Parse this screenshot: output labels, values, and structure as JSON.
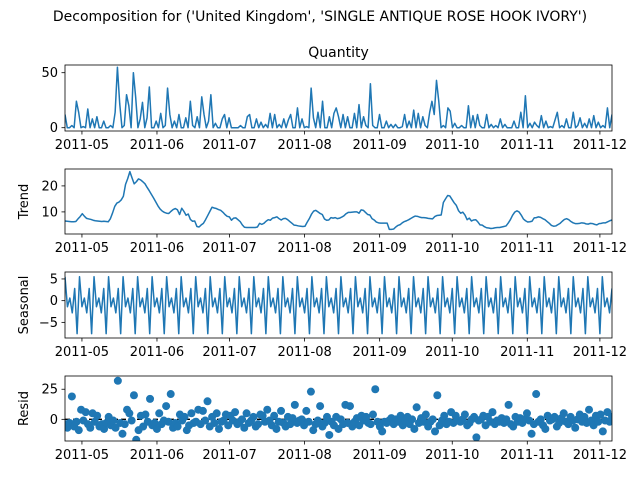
{
  "figure_title": "Decomposition for ('United Kingdom', 'SINGLE ANTIQUE ROSE HOOK IVORY')",
  "colors": {
    "series": "#1f77b4",
    "axis": "#000000",
    "background": "#ffffff",
    "zero_line": "#000000"
  },
  "chart_data": [
    {
      "type": "line",
      "title": "Quantity",
      "ylabel": "",
      "x_start": "2011-04-24",
      "x_end": "2011-12-06",
      "xlim": [
        "2011-04-24",
        "2011-12-06"
      ],
      "ylim": [
        -3,
        57
      ],
      "yticks": [
        0,
        50
      ],
      "xticks": [
        "2011-05",
        "2011-06",
        "2011-07",
        "2011-08",
        "2011-09",
        "2011-10",
        "2011-11",
        "2011-12"
      ],
      "series": [
        {
          "values": [
            12,
            0,
            0,
            2,
            0,
            24,
            14,
            0,
            1,
            0,
            17,
            0,
            8,
            0,
            10,
            0,
            0,
            6,
            0,
            0,
            2,
            0,
            14,
            55,
            22,
            0,
            2,
            30,
            20,
            0,
            50,
            28,
            0,
            8,
            23,
            0,
            9,
            37,
            0,
            0,
            6,
            0,
            13,
            0,
            2,
            36,
            12,
            0,
            6,
            0,
            12,
            0,
            0,
            9,
            0,
            24,
            2,
            0,
            10,
            0,
            28,
            12,
            0,
            6,
            30,
            0,
            4,
            0,
            0,
            8,
            12,
            0,
            9,
            0,
            0,
            0,
            0,
            2,
            0,
            0,
            10,
            12,
            0,
            0,
            8,
            0,
            5,
            0,
            3,
            0,
            13,
            0,
            12,
            0,
            3,
            0,
            8,
            0,
            7,
            12,
            0,
            0,
            18,
            0,
            8,
            0,
            1,
            0,
            36,
            9,
            0,
            14,
            0,
            24,
            0,
            0,
            10,
            0,
            13,
            18,
            10,
            0,
            12,
            0,
            10,
            0,
            0,
            13,
            0,
            21,
            0,
            10,
            2,
            0,
            40,
            2,
            0,
            0,
            12,
            0,
            0,
            6,
            0,
            3,
            0,
            3,
            0,
            0,
            1,
            12,
            0,
            6,
            0,
            16,
            0,
            13,
            0,
            10,
            2,
            0,
            14,
            24,
            12,
            43,
            24,
            0,
            2,
            0,
            18,
            15,
            0,
            4,
            0,
            0,
            2,
            0,
            0,
            20,
            0,
            11,
            0,
            12,
            2,
            0,
            0,
            12,
            0,
            3,
            0,
            2,
            0,
            8,
            0,
            3,
            0,
            0,
            0,
            6,
            0,
            0,
            14,
            0,
            29,
            0,
            4,
            0,
            5,
            2,
            0,
            11,
            0,
            6,
            0,
            1,
            0,
            7,
            14,
            0,
            2,
            0,
            8,
            0,
            0,
            14,
            0,
            2,
            9,
            0,
            4,
            0,
            8,
            0,
            11,
            0,
            5,
            0,
            2,
            0,
            18,
            0,
            12
          ]
        }
      ]
    },
    {
      "type": "line",
      "title": "",
      "ylabel": "Trend",
      "x_start": "2011-04-24",
      "x_end": "2011-12-06",
      "xlim": [
        "2011-04-24",
        "2011-12-06"
      ],
      "ylim": [
        1.5,
        26.5
      ],
      "yticks": [
        10,
        20
      ],
      "xticks": [
        "2011-05",
        "2011-06",
        "2011-07",
        "2011-08",
        "2011-09",
        "2011-10",
        "2011-11",
        "2011-12"
      ],
      "series": [
        {
          "values": [
            6.5,
            6.4,
            6.3,
            6.2,
            6.2,
            6.3,
            7.3,
            8.2,
            9.3,
            8.3,
            7.5,
            7.3,
            7.1,
            6.8,
            6.6,
            6.5,
            6.4,
            6.3,
            6.4,
            6.3,
            6.2,
            7.4,
            9.6,
            12.1,
            13.4,
            13.8,
            14.6,
            16.0,
            20.6,
            22.8,
            25.5,
            23.1,
            20.8,
            21.6,
            22.7,
            22.3,
            21.6,
            20.8,
            19.4,
            18.1,
            16.7,
            15.3,
            13.8,
            12.3,
            11.1,
            10.3,
            9.8,
            9.5,
            9.4,
            10.2,
            10.9,
            11.3,
            10.8,
            9.0,
            11.4,
            10.2,
            8.7,
            9.2,
            7.1,
            6.4,
            6.5,
            4.4,
            4.2,
            5.0,
            5.6,
            7.0,
            8.6,
            10.2,
            11.8,
            11.5,
            11.3,
            10.9,
            10.6,
            9.9,
            9.0,
            8.3,
            8.1,
            6.8,
            7.6,
            7.7,
            7.0,
            6.3,
            5.0,
            4.1,
            4.0,
            4.0,
            4.0,
            4.0,
            4.0,
            4.2,
            5.6,
            5.2,
            5.6,
            6.4,
            7.0,
            6.8,
            7.6,
            7.8,
            8.1,
            7.4,
            6.9,
            7.4,
            7.5,
            7.0,
            6.3,
            5.6,
            4.9,
            4.8,
            4.6,
            4.5,
            4.4,
            4.5,
            6.0,
            7.4,
            9.1,
            10.3,
            10.6,
            10.0,
            9.4,
            9.0,
            7.3,
            6.8,
            6.9,
            7.8,
            7.6,
            7.8,
            7.4,
            7.6,
            8.0,
            8.5,
            9.3,
            9.8,
            9.8,
            9.9,
            10.0,
            10.0,
            9.5,
            10.8,
            10.6,
            9.8,
            9.0,
            8.8,
            7.4,
            6.9,
            6.1,
            5.8,
            5.7,
            5.7,
            5.7,
            5.7,
            3.3,
            3.3,
            3.4,
            4.2,
            4.8,
            5.1,
            5.8,
            6.3,
            6.6,
            7.0,
            7.5,
            8.0,
            8.4,
            8.3,
            8.0,
            7.8,
            7.8,
            7.7,
            7.5,
            7.4,
            7.3,
            8.2,
            8.6,
            8.7,
            8.8,
            13.6,
            15.0,
            16.3,
            16.1,
            14.8,
            13.5,
            12.5,
            10.5,
            9.5,
            9.9,
            8.8,
            7.0,
            7.6,
            6.5,
            6.9,
            7.0,
            6.1,
            5.0,
            4.9,
            4.3,
            3.9,
            3.8,
            3.6,
            3.7,
            3.9,
            4.0,
            4.0,
            4.2,
            4.4,
            4.6,
            5.7,
            7.0,
            8.7,
            9.9,
            10.4,
            10.0,
            8.8,
            7.3,
            6.6,
            6.1,
            6.2,
            6.4,
            7.7,
            7.8,
            8.1,
            7.9,
            7.4,
            7.0,
            6.3,
            5.6,
            4.8,
            4.5,
            4.6,
            5.1,
            5.6,
            6.4,
            7.1,
            7.4,
            7.0,
            6.3,
            5.8,
            5.5,
            5.5,
            5.6,
            5.8,
            5.7,
            5.4,
            5.3,
            5.6,
            5.5,
            5.2,
            5.0,
            5.5,
            5.6,
            5.8,
            5.8,
            6.2,
            6.6,
            6.9
          ]
        }
      ]
    },
    {
      "type": "line",
      "title": "",
      "ylabel": "Seasonal",
      "x_start": "2011-04-24",
      "x_end": "2011-12-06",
      "xlim": [
        "2011-04-24",
        "2011-12-06"
      ],
      "ylim": [
        -8.6,
        6.6
      ],
      "yticks": [
        -5,
        0,
        5
      ],
      "xticks": [
        "2011-05",
        "2011-06",
        "2011-07",
        "2011-08",
        "2011-09",
        "2011-10",
        "2011-11",
        "2011-12"
      ],
      "period": 6,
      "pattern": [
        5.5,
        -1.4,
        0.6,
        -2.8,
        2.8,
        -7.6
      ],
      "series": [
        {
          "name": "",
          "values": []
        }
      ]
    },
    {
      "type": "scatter",
      "title": "",
      "ylabel": "Resid",
      "x_start": "2011-04-24",
      "x_end": "2011-12-06",
      "xlim": [
        "2011-04-24",
        "2011-12-06"
      ],
      "ylim": [
        -18,
        36
      ],
      "yticks": [
        0,
        25
      ],
      "xticks": [
        "2011-05",
        "2011-06",
        "2011-07",
        "2011-08",
        "2011-09",
        "2011-10",
        "2011-11",
        "2011-12"
      ],
      "zero_line": true,
      "series": [
        {
          "values": [
            -4,
            -7,
            -3,
            19,
            -6,
            -2,
            -9,
            8,
            -1,
            6,
            -4,
            -7,
            5,
            -2,
            3,
            -6,
            -4,
            -8,
            -3,
            2,
            -5,
            -1,
            -7,
            32,
            -3,
            -12,
            -4,
            8,
            5,
            -1,
            20,
            -17,
            -9,
            3,
            -6,
            4,
            -2,
            17,
            -5,
            -3,
            -8,
            5,
            -4,
            -1,
            11,
            -2,
            21,
            -7,
            -3,
            -6,
            4,
            -1,
            2,
            -9,
            -5,
            5,
            -3,
            -2,
            8,
            -4,
            7,
            -1,
            15,
            -6,
            2,
            -3,
            5,
            -8,
            -2,
            -1,
            4,
            -5,
            3,
            -1,
            6,
            -4,
            -2,
            0,
            -7,
            5,
            -3,
            -1,
            2,
            -6,
            -4,
            4,
            3,
            -2,
            8,
            -1,
            -5,
            3,
            -8,
            -2,
            7,
            -3,
            -6,
            2,
            -4,
            1,
            12,
            -3,
            -1,
            0,
            -5,
            7,
            -2,
            23,
            -9,
            -4,
            -1,
            11,
            -6,
            -3,
            2,
            -13,
            -2,
            -5,
            2,
            -8,
            0,
            -4,
            12,
            -3,
            11,
            -6,
            -2,
            1,
            -5,
            3,
            -1,
            2,
            -3,
            -4,
            4,
            25,
            -2,
            -6,
            -10,
            -2,
            -3,
            -1,
            1,
            -4,
            0,
            -2,
            3,
            -5,
            -1,
            2,
            -4,
            0,
            -8,
            10,
            -3,
            1,
            -2,
            4,
            -6,
            -2,
            0,
            -10,
            20,
            -5,
            -1,
            3,
            -4,
            -2,
            6,
            -3,
            3,
            -1,
            -2,
            0,
            4,
            -5,
            -3,
            0,
            2,
            -15,
            -1,
            0,
            3,
            -5,
            2,
            -2,
            6,
            -4,
            -1,
            -2,
            1,
            -3,
            0,
            12,
            -4,
            -6,
            2,
            -2,
            1,
            -3,
            0,
            5,
            -1,
            -12,
            -4,
            21,
            -2,
            0,
            -5,
            -8,
            3,
            -1,
            0,
            2,
            -6,
            -3,
            1,
            5,
            -2,
            -4,
            2,
            -1,
            -7,
            0,
            4,
            -2,
            2,
            -3,
            8,
            -1,
            -5,
            3,
            -2,
            4,
            -10,
            -1,
            6,
            -2,
            2
          ]
        }
      ]
    }
  ]
}
